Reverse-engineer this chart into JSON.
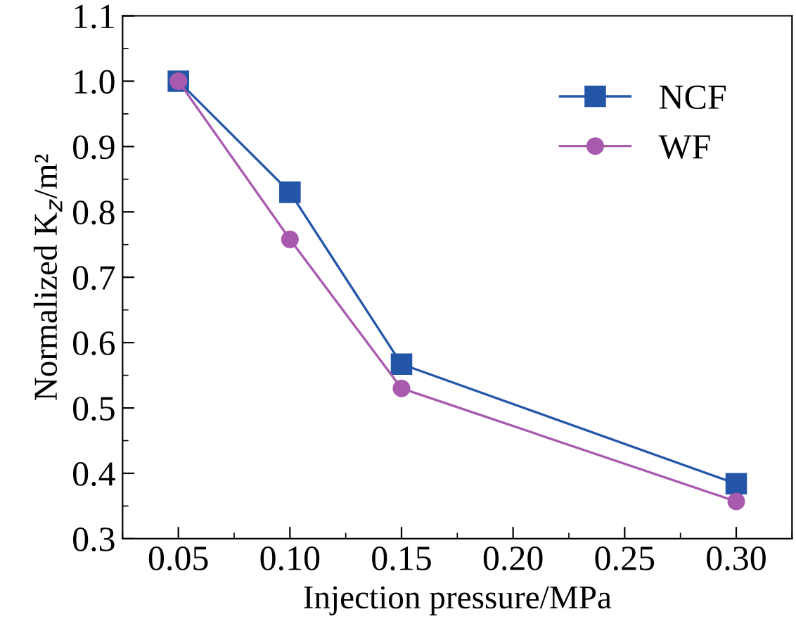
{
  "chart_data": {
    "type": "line",
    "xlabel": "Injection pressure/MPa",
    "ylabel": "Normalized K$_{z}$/m²",
    "x": [
      0.05,
      0.1,
      0.15,
      0.3
    ],
    "series": [
      {
        "name": "NCF",
        "color": "#2456a8",
        "values": [
          1.0,
          0.83,
          0.567,
          0.384
        ],
        "marker": "square"
      },
      {
        "name": "WF",
        "color": "#a85aaf",
        "values": [
          1.0,
          0.758,
          0.53,
          0.357
        ],
        "marker": "circle"
      }
    ],
    "xlim": [
      0.025,
      0.325
    ],
    "xticks": [
      {
        "value": 0.05,
        "label": "0.05"
      },
      {
        "value": 0.1,
        "label": "0.10"
      },
      {
        "value": 0.15,
        "label": "0.15"
      },
      {
        "value": 0.2,
        "label": "0.20"
      },
      {
        "value": 0.25,
        "label": "0.25"
      },
      {
        "value": 0.3,
        "label": "0.30"
      }
    ],
    "ylim": [
      0.3,
      1.1
    ],
    "yticks": [
      0.3,
      0.4,
      0.5,
      0.6,
      0.7,
      0.8,
      0.9,
      {
        "value": 1.0,
        "label": "1.0"
      },
      1.1
    ],
    "legend": "top right",
    "grid": false,
    "line_style": "solid"
  }
}
